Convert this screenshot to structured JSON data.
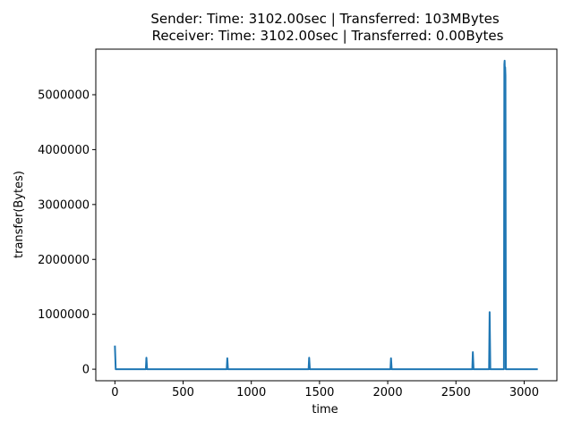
{
  "chart_data": {
    "type": "line",
    "title_lines": [
      "Sender: Time: 3102.00sec | Transferred: 103MBytes",
      "Receiver: Time: 3102.00sec | Transferred: 0.00Bytes"
    ],
    "xlabel": "time",
    "ylabel": "transfer(Bytes)",
    "xlim": [
      -140,
      3240
    ],
    "ylim": [
      -210000,
      5830000
    ],
    "x_ticks": [
      0,
      500,
      1000,
      1500,
      2000,
      2500,
      3000
    ],
    "x_tick_labels": [
      "0",
      "500",
      "1000",
      "1500",
      "2000",
      "2500",
      "3000"
    ],
    "y_ticks": [
      0,
      1000000,
      2000000,
      3000000,
      4000000,
      5000000
    ],
    "y_tick_labels": [
      "0",
      "1000000",
      "2000000",
      "3000000",
      "4000000",
      "5000000"
    ],
    "grid": false,
    "line_color": "#1f77b4",
    "series": [
      {
        "x": [
          0,
          6,
          12,
          227,
          231,
          236,
          820,
          824,
          829,
          1420,
          1424,
          1429,
          2020,
          2024,
          2029,
          2620,
          2624,
          2629,
          2743,
          2747,
          2752,
          2852,
          2855,
          2857,
          2859,
          2861,
          2863,
          2866,
          3100
        ],
        "values": [
          430000,
          0,
          0,
          0,
          210000,
          0,
          0,
          200000,
          0,
          0,
          210000,
          0,
          0,
          200000,
          0,
          0,
          310000,
          0,
          0,
          1040000,
          0,
          0,
          5550000,
          5620000,
          5400000,
          5500000,
          5350000,
          0,
          0
        ]
      }
    ]
  }
}
